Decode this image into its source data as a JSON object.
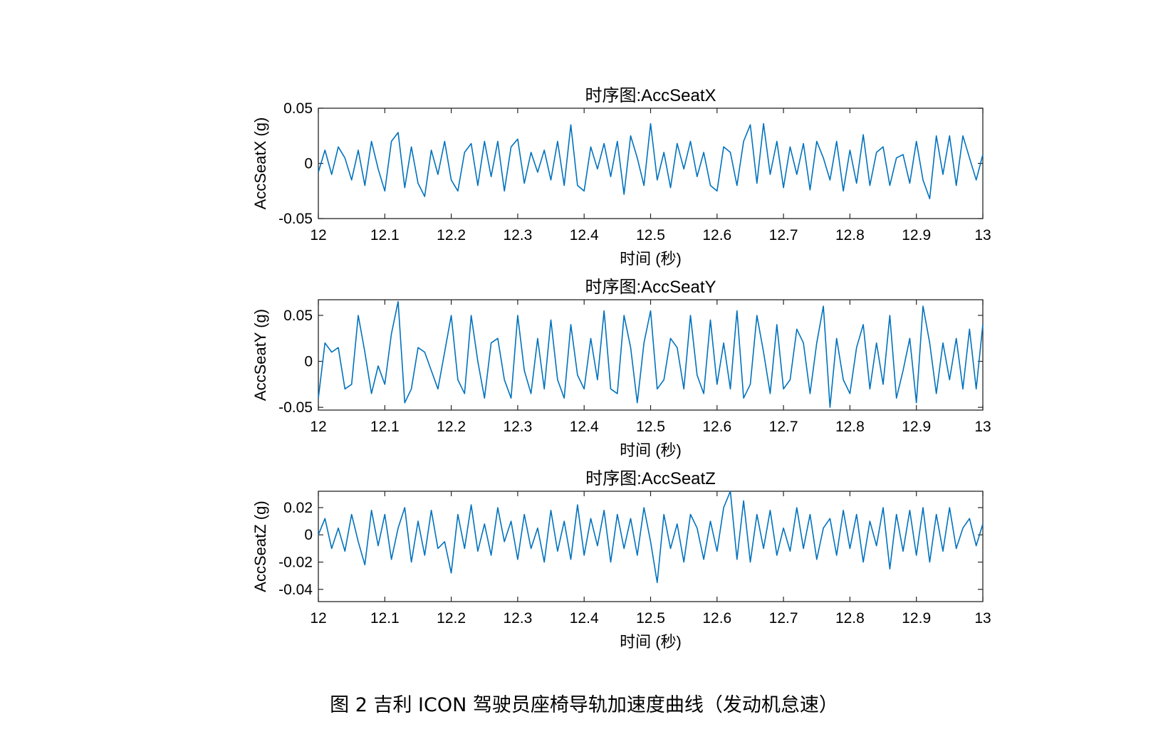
{
  "figure_caption": "图 2 吉利 ICON 驾驶员座椅导轨加速度曲线（发动机怠速）",
  "colors": {
    "line": "#0072BD",
    "axes": "#262626"
  },
  "chart_data": [
    {
      "type": "line",
      "title": "时序图:AccSeatX",
      "xlabel": "时间 (秒)",
      "ylabel": "AccSeatX (g)",
      "xlim": [
        12,
        13
      ],
      "ylim": [
        -0.05,
        0.05
      ],
      "xticks": [
        "12",
        "12.1",
        "12.2",
        "12.3",
        "12.4",
        "12.5",
        "12.6",
        "12.7",
        "12.8",
        "12.9",
        "13"
      ],
      "yticks": [
        {
          "v": 0.05,
          "label": "0.05"
        },
        {
          "v": 0,
          "label": "0"
        },
        {
          "v": -0.05,
          "label": "-0.05"
        }
      ],
      "series": [
        {
          "x": [
            12,
            12.01,
            12.02,
            12.03,
            12.04,
            12.05,
            12.06,
            12.07,
            12.08,
            12.09,
            12.1,
            12.11,
            12.12,
            12.13,
            12.14,
            12.15,
            12.16,
            12.17,
            12.18,
            12.19,
            12.2,
            12.21,
            12.22,
            12.23,
            12.24,
            12.25,
            12.26,
            12.27,
            12.28,
            12.29,
            12.3,
            12.31,
            12.32,
            12.33,
            12.34,
            12.35,
            12.36,
            12.37,
            12.38,
            12.39,
            12.4,
            12.41,
            12.42,
            12.43,
            12.44,
            12.45,
            12.46,
            12.47,
            12.48,
            12.49,
            12.5,
            12.51,
            12.52,
            12.53,
            12.54,
            12.55,
            12.56,
            12.57,
            12.58,
            12.59,
            12.6,
            12.61,
            12.62,
            12.63,
            12.64,
            12.65,
            12.66,
            12.67,
            12.68,
            12.69,
            12.7,
            12.71,
            12.72,
            12.73,
            12.74,
            12.75,
            12.76,
            12.77,
            12.78,
            12.79,
            12.8,
            12.81,
            12.82,
            12.83,
            12.84,
            12.85,
            12.86,
            12.87,
            12.88,
            12.89,
            12.9,
            12.91,
            12.92,
            12.93,
            12.94,
            12.95,
            12.96,
            12.97,
            12.98,
            12.99,
            13
          ],
          "y": [
            -0.008,
            0.012,
            -0.01,
            0.015,
            0.005,
            -0.015,
            0.012,
            -0.02,
            0.02,
            -0.005,
            -0.025,
            0.02,
            0.028,
            -0.022,
            0.015,
            -0.018,
            -0.03,
            0.012,
            -0.01,
            0.02,
            -0.015,
            -0.025,
            0.01,
            0.018,
            -0.02,
            0.02,
            -0.012,
            0.02,
            -0.025,
            0.015,
            0.022,
            -0.018,
            0.01,
            -0.008,
            0.012,
            -0.015,
            0.02,
            -0.02,
            0.035,
            -0.02,
            -0.025,
            0.015,
            -0.005,
            0.018,
            -0.012,
            0.02,
            -0.028,
            0.025,
            0.005,
            -0.02,
            0.036,
            -0.015,
            0.01,
            -0.022,
            0.018,
            -0.005,
            0.02,
            -0.012,
            0.01,
            -0.02,
            -0.025,
            0.015,
            0.01,
            -0.02,
            0.02,
            0.035,
            -0.018,
            0.036,
            -0.01,
            0.02,
            -0.022,
            0.015,
            -0.01,
            0.018,
            -0.024,
            0.02,
            0.005,
            -0.015,
            0.02,
            -0.025,
            0.012,
            -0.018,
            0.026,
            -0.02,
            0.01,
            0.015,
            -0.02,
            0.005,
            0.008,
            -0.018,
            0.02,
            -0.015,
            -0.032,
            0.025,
            -0.01,
            0.025,
            -0.02,
            0.025,
            0.005,
            -0.015,
            0.008
          ]
        }
      ]
    },
    {
      "type": "line",
      "title": "时序图:AccSeatY",
      "xlabel": "时间 (秒)",
      "ylabel": "AccSeatY (g)",
      "xlim": [
        12,
        13
      ],
      "ylim": [
        -0.053,
        0.067
      ],
      "xticks": [
        "12",
        "12.1",
        "12.2",
        "12.3",
        "12.4",
        "12.5",
        "12.6",
        "12.7",
        "12.8",
        "12.9",
        "13"
      ],
      "yticks": [
        {
          "v": 0.05,
          "label": "0.05"
        },
        {
          "v": 0,
          "label": "0"
        },
        {
          "v": -0.05,
          "label": "-0.05"
        }
      ],
      "series": [
        {
          "x": [
            12,
            12.01,
            12.02,
            12.03,
            12.04,
            12.05,
            12.06,
            12.07,
            12.08,
            12.09,
            12.1,
            12.11,
            12.12,
            12.13,
            12.14,
            12.15,
            12.16,
            12.17,
            12.18,
            12.19,
            12.2,
            12.21,
            12.22,
            12.23,
            12.24,
            12.25,
            12.26,
            12.27,
            12.28,
            12.29,
            12.3,
            12.31,
            12.32,
            12.33,
            12.34,
            12.35,
            12.36,
            12.37,
            12.38,
            12.39,
            12.4,
            12.41,
            12.42,
            12.43,
            12.44,
            12.45,
            12.46,
            12.47,
            12.48,
            12.49,
            12.5,
            12.51,
            12.52,
            12.53,
            12.54,
            12.55,
            12.56,
            12.57,
            12.58,
            12.59,
            12.6,
            12.61,
            12.62,
            12.63,
            12.64,
            12.65,
            12.66,
            12.67,
            12.68,
            12.69,
            12.7,
            12.71,
            12.72,
            12.73,
            12.74,
            12.75,
            12.76,
            12.77,
            12.78,
            12.79,
            12.8,
            12.81,
            12.82,
            12.83,
            12.84,
            12.85,
            12.86,
            12.87,
            12.88,
            12.89,
            12.9,
            12.91,
            12.92,
            12.93,
            12.94,
            12.95,
            12.96,
            12.97,
            12.98,
            12.99,
            13
          ],
          "y": [
            -0.04,
            0.02,
            0.01,
            0.015,
            -0.03,
            -0.025,
            0.05,
            0.01,
            -0.035,
            -0.005,
            -0.025,
            0.03,
            0.065,
            -0.045,
            -0.03,
            0.015,
            0.01,
            -0.01,
            -0.03,
            0.01,
            0.05,
            -0.02,
            -0.035,
            0.05,
            0.0,
            -0.04,
            0.02,
            0.025,
            -0.02,
            -0.04,
            0.05,
            -0.01,
            -0.035,
            0.025,
            -0.03,
            0.045,
            -0.02,
            -0.04,
            0.04,
            -0.015,
            -0.03,
            0.025,
            -0.02,
            0.055,
            -0.03,
            -0.035,
            0.05,
            0.015,
            -0.045,
            0.02,
            0.055,
            -0.03,
            -0.02,
            0.025,
            0.015,
            -0.03,
            0.05,
            -0.015,
            -0.035,
            0.045,
            -0.025,
            0.02,
            -0.03,
            0.055,
            -0.04,
            -0.025,
            0.05,
            0.01,
            -0.035,
            0.04,
            -0.03,
            -0.02,
            0.035,
            0.02,
            -0.035,
            0.02,
            0.06,
            -0.05,
            0.025,
            -0.02,
            -0.035,
            0.015,
            0.04,
            -0.03,
            0.02,
            -0.025,
            0.05,
            -0.04,
            -0.01,
            0.025,
            -0.045,
            0.06,
            0.02,
            -0.035,
            0.02,
            -0.02,
            0.025,
            -0.03,
            0.035,
            -0.03,
            0.04
          ]
        }
      ]
    },
    {
      "type": "line",
      "title": "时序图:AccSeatZ",
      "xlabel": "时间 (秒)",
      "ylabel": "AccSeatZ (g)",
      "xlim": [
        12,
        13
      ],
      "ylim": [
        -0.049,
        0.032
      ],
      "xticks": [
        "12",
        "12.1",
        "12.2",
        "12.3",
        "12.4",
        "12.5",
        "12.6",
        "12.7",
        "12.8",
        "12.9",
        "13"
      ],
      "yticks": [
        {
          "v": 0.02,
          "label": "0.02"
        },
        {
          "v": 0,
          "label": "0"
        },
        {
          "v": -0.02,
          "label": "-0.02"
        },
        {
          "v": -0.04,
          "label": "-0.04"
        }
      ],
      "series": [
        {
          "x": [
            12,
            12.01,
            12.02,
            12.03,
            12.04,
            12.05,
            12.06,
            12.07,
            12.08,
            12.09,
            12.1,
            12.11,
            12.12,
            12.13,
            12.14,
            12.15,
            12.16,
            12.17,
            12.18,
            12.19,
            12.2,
            12.21,
            12.22,
            12.23,
            12.24,
            12.25,
            12.26,
            12.27,
            12.28,
            12.29,
            12.3,
            12.31,
            12.32,
            12.33,
            12.34,
            12.35,
            12.36,
            12.37,
            12.38,
            12.39,
            12.4,
            12.41,
            12.42,
            12.43,
            12.44,
            12.45,
            12.46,
            12.47,
            12.48,
            12.49,
            12.5,
            12.51,
            12.52,
            12.53,
            12.54,
            12.55,
            12.56,
            12.57,
            12.58,
            12.59,
            12.6,
            12.61,
            12.62,
            12.63,
            12.64,
            12.65,
            12.66,
            12.67,
            12.68,
            12.69,
            12.7,
            12.71,
            12.72,
            12.73,
            12.74,
            12.75,
            12.76,
            12.77,
            12.78,
            12.79,
            12.8,
            12.81,
            12.82,
            12.83,
            12.84,
            12.85,
            12.86,
            12.87,
            12.88,
            12.89,
            12.9,
            12.91,
            12.92,
            12.93,
            12.94,
            12.95,
            12.96,
            12.97,
            12.98,
            12.99,
            13
          ],
          "y": [
            0.0,
            0.012,
            -0.01,
            0.005,
            -0.012,
            0.015,
            -0.005,
            -0.022,
            0.018,
            -0.008,
            0.015,
            -0.018,
            0.005,
            0.02,
            -0.02,
            0.01,
            -0.015,
            0.018,
            -0.01,
            -0.005,
            -0.028,
            0.015,
            -0.01,
            0.022,
            -0.012,
            0.008,
            -0.015,
            0.02,
            -0.005,
            0.01,
            -0.018,
            0.015,
            -0.01,
            0.005,
            -0.02,
            0.018,
            -0.012,
            0.01,
            -0.018,
            0.022,
            -0.015,
            0.012,
            -0.008,
            0.018,
            -0.02,
            0.015,
            -0.01,
            0.012,
            -0.015,
            0.02,
            -0.005,
            -0.035,
            0.015,
            -0.01,
            0.008,
            -0.02,
            0.015,
            0.005,
            -0.018,
            0.01,
            -0.012,
            0.02,
            0.032,
            -0.018,
            0.025,
            -0.02,
            0.015,
            -0.01,
            0.018,
            -0.015,
            0.005,
            -0.012,
            0.02,
            -0.01,
            0.015,
            -0.018,
            0.005,
            0.012,
            -0.015,
            0.018,
            -0.01,
            0.015,
            -0.02,
            0.01,
            -0.008,
            0.02,
            -0.025,
            0.015,
            -0.012,
            0.018,
            -0.015,
            0.02,
            -0.02,
            0.015,
            -0.012,
            0.02,
            -0.01,
            0.005,
            0.012,
            -0.008,
            0.008
          ]
        }
      ]
    }
  ]
}
